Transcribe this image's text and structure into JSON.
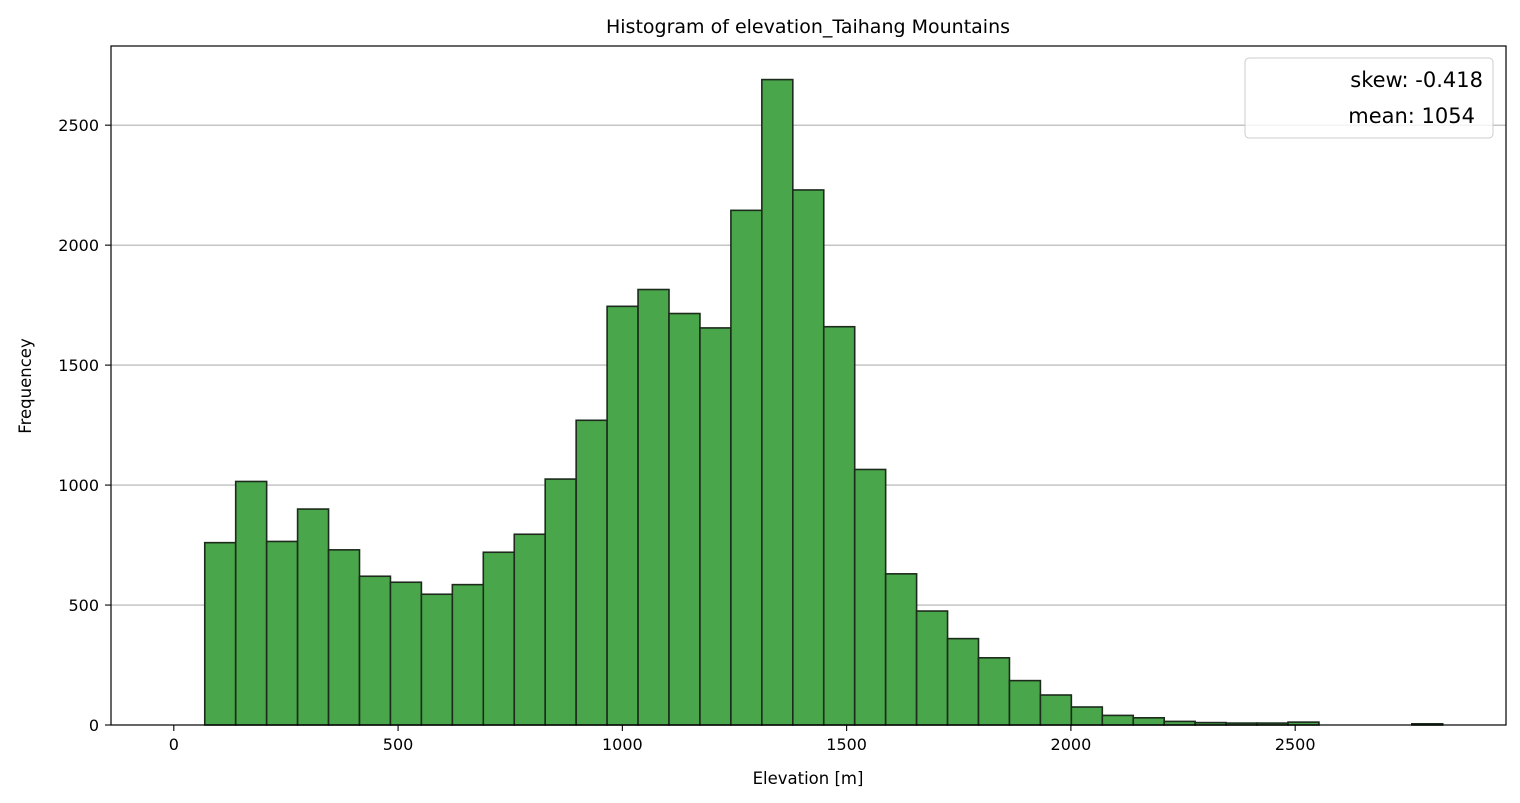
{
  "chart_data": {
    "type": "bar",
    "title": "Histogram of elevation_Taihang Mountains",
    "xlabel": "Elevation [m]",
    "ylabel": "Frequencey",
    "xlim": [
      -140,
      2970
    ],
    "ylim": [
      0,
      2830
    ],
    "xticks": [
      0,
      500,
      1000,
      1500,
      2000,
      2500
    ],
    "yticks": [
      0,
      500,
      1000,
      1500,
      2000,
      2500
    ],
    "grid": "y",
    "bar_color": "#4aa64a",
    "edge_color": "#1c2b1c",
    "legend": {
      "placement": "top-right",
      "entries": [
        "skew: -0.418",
        "mean: 1054"
      ]
    },
    "bin_edges": [
      0,
      69,
      138,
      207,
      276,
      345,
      414,
      483,
      552,
      621,
      690,
      759,
      828,
      897,
      966,
      1035,
      1104,
      1173,
      1242,
      1311,
      1380,
      1449,
      1518,
      1587,
      1656,
      1725,
      1794,
      1863,
      1932,
      2001,
      2070,
      2139,
      2208,
      2277,
      2346,
      2415,
      2484,
      2553,
      2622,
      2691,
      2760,
      2829
    ],
    "values": [
      0,
      760,
      1015,
      765,
      900,
      730,
      620,
      595,
      545,
      585,
      720,
      795,
      1025,
      1270,
      1745,
      1815,
      1715,
      1655,
      2145,
      2690,
      2230,
      1660,
      1065,
      630,
      475,
      360,
      280,
      185,
      125,
      75,
      40,
      30,
      15,
      10,
      8,
      8,
      12,
      0,
      0,
      0,
      5
    ]
  }
}
